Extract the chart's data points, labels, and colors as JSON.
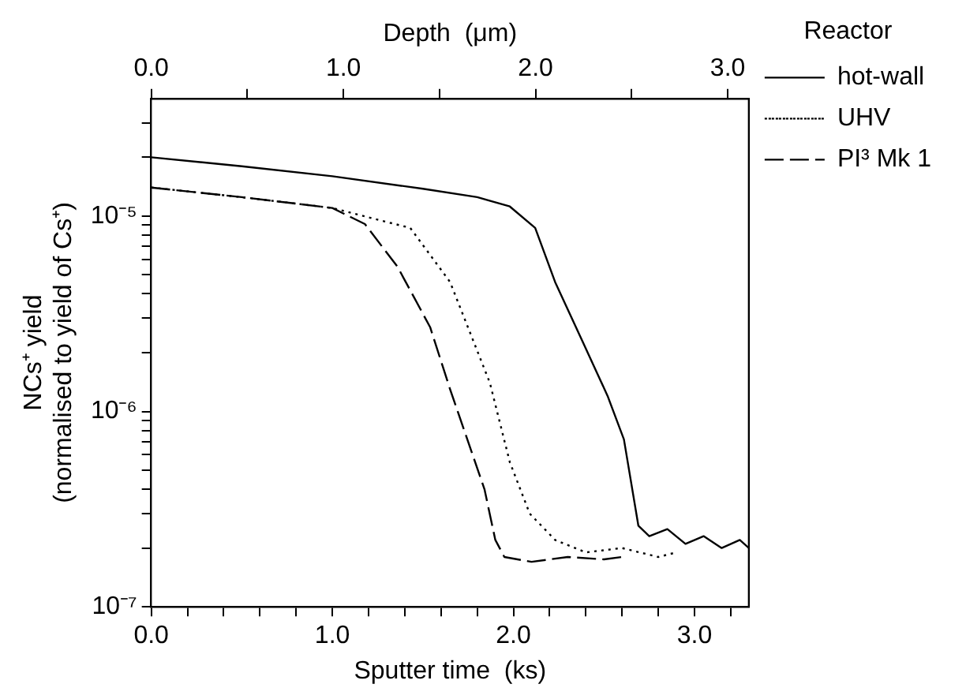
{
  "chart_data": {
    "type": "line",
    "xlabel": "Sputter time  (ks)",
    "ylabel": "NCs⁺ yield\n(normalised to yield of Cs⁺)",
    "x2label": "Depth  (μm)",
    "legend_title": "Reactor",
    "legend": "right",
    "log": "y",
    "grid": false,
    "marker": "none",
    "xlim": [
      0,
      3.3
    ],
    "xticks": [
      {
        "value": 0,
        "label": "0.0"
      },
      {
        "value": 0.2,
        "label": null
      },
      {
        "value": 0.4,
        "label": null
      },
      {
        "value": 0.6,
        "label": null
      },
      {
        "value": 0.8,
        "label": null
      },
      {
        "value": 1,
        "label": "1.0"
      },
      {
        "value": 1.2,
        "label": null
      },
      {
        "value": 1.4,
        "label": null
      },
      {
        "value": 1.6,
        "label": null
      },
      {
        "value": 1.8,
        "label": null
      },
      {
        "value": 2,
        "label": "2.0"
      },
      {
        "value": 2.2,
        "label": null
      },
      {
        "value": 2.4,
        "label": null
      },
      {
        "value": 2.6,
        "label": null
      },
      {
        "value": 2.8,
        "label": null
      },
      {
        "value": 3,
        "label": "3.0"
      },
      {
        "value": 3.2,
        "label": null
      }
    ],
    "x2lim": [
      0,
      3.11
    ],
    "x2ticks": [
      {
        "value": 0,
        "label": "0.0"
      },
      {
        "value": 0.5,
        "label": null
      },
      {
        "value": 1,
        "label": "1.0"
      },
      {
        "value": 1.5,
        "label": null
      },
      {
        "value": 2,
        "label": "2.0"
      },
      {
        "value": 2.5,
        "label": null
      },
      {
        "value": 3,
        "label": "3.0"
      }
    ],
    "ylim": [
      1e-07,
      4e-05
    ],
    "yticks": [
      {
        "value": 1e-07,
        "label": "10⁻⁷"
      },
      {
        "value": 2e-07,
        "label": null
      },
      {
        "value": 3e-07,
        "label": null
      },
      {
        "value": 4e-07,
        "label": null
      },
      {
        "value": 5e-07,
        "label": null
      },
      {
        "value": 6e-07,
        "label": null
      },
      {
        "value": 7e-07,
        "label": null
      },
      {
        "value": 8e-07,
        "label": null
      },
      {
        "value": 9e-07,
        "label": null
      },
      {
        "value": 1e-06,
        "label": "10⁻⁶"
      },
      {
        "value": 2e-06,
        "label": null
      },
      {
        "value": 3e-06,
        "label": null
      },
      {
        "value": 4e-06,
        "label": null
      },
      {
        "value": 5e-06,
        "label": null
      },
      {
        "value": 6e-06,
        "label": null
      },
      {
        "value": 7e-06,
        "label": null
      },
      {
        "value": 8e-06,
        "label": null
      },
      {
        "value": 9e-06,
        "label": null
      },
      {
        "value": 1e-05,
        "label": "10⁻⁵"
      },
      {
        "value": 2e-05,
        "label": null
      },
      {
        "value": 3e-05,
        "label": null
      }
    ],
    "series": [
      {
        "name": "hot-wall",
        "color": "#000000",
        "line_style": "solid",
        "x": [
          0,
          0.5,
          1.0,
          1.5,
          1.8,
          1.98,
          2.12,
          2.23,
          2.38,
          2.52,
          2.61,
          2.69,
          2.75,
          2.85,
          2.95,
          3.05,
          3.15,
          3.25,
          3.3
        ],
        "values": [
          2e-05,
          1.8e-05,
          1.6e-05,
          1.38e-05,
          1.25e-05,
          1.12e-05,
          8.7e-06,
          4.6e-06,
          2.3e-06,
          1.2e-06,
          7.2e-07,
          2.6e-07,
          2.3e-07,
          2.5e-07,
          2.1e-07,
          2.3e-07,
          2e-07,
          2.2e-07,
          2e-07
        ]
      },
      {
        "name": "UHV",
        "color": "#000000",
        "line_style": "dotted",
        "x": [
          0,
          0.5,
          1.0,
          1.21,
          1.43,
          1.65,
          1.87,
          1.98,
          2.09,
          2.23,
          2.4,
          2.6,
          2.8,
          2.9
        ],
        "values": [
          1.4e-05,
          1.25e-05,
          1.1e-05,
          9.8e-06,
          8.7e-06,
          4.6e-06,
          1.4e-06,
          5.5e-07,
          3e-07,
          2.2e-07,
          1.9e-07,
          2e-07,
          1.8e-07,
          1.9e-07
        ]
      },
      {
        "name": "PI³ Mk 1",
        "color": "#000000",
        "line_style": "dashed",
        "x": [
          0,
          0.5,
          1.0,
          1.18,
          1.36,
          1.54,
          1.65,
          1.84,
          1.9,
          1.95,
          2.1,
          2.3,
          2.5,
          2.6
        ],
        "values": [
          1.4e-05,
          1.25e-05,
          1.1e-05,
          9.1e-06,
          5.5e-06,
          2.7e-06,
          1.3e-06,
          4e-07,
          2.2e-07,
          1.8e-07,
          1.7e-07,
          1.8e-07,
          1.75e-07,
          1.8e-07
        ]
      }
    ]
  }
}
